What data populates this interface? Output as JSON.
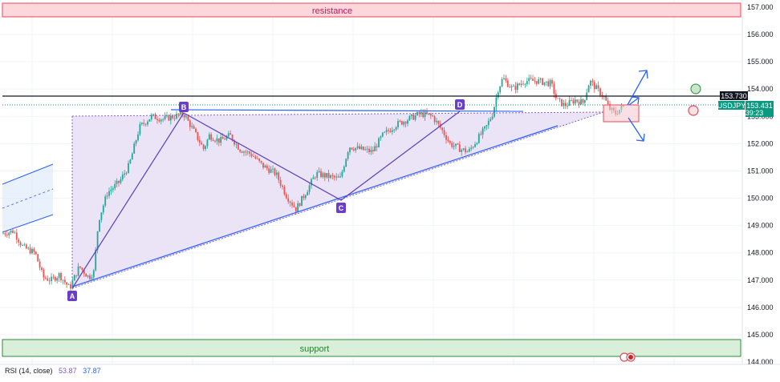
{
  "chart_data": {
    "type": "candlestick",
    "symbol": "USDJPY",
    "y_axis": {
      "min": 144.0,
      "max": 157.0,
      "ticks": [
        "157.000",
        "156.000",
        "155.000",
        "154.000",
        "153.000",
        "152.000",
        "151.000",
        "150.000",
        "149.000",
        "148.000",
        "147.000",
        "146.000",
        "145.000",
        "144.000"
      ]
    },
    "annotations": {
      "resistance_label": "resistance",
      "resistance_zone": [
        156.6,
        157.05
      ],
      "support_label": "support",
      "support_zone": [
        144.2,
        144.8
      ],
      "horizontal_level": 153.73,
      "pattern_points": [
        {
          "label": "A",
          "price": 146.6
        },
        {
          "label": "B",
          "price": 153.0
        },
        {
          "label": "C",
          "price": 149.9
        },
        {
          "label": "D",
          "price": 153.1
        }
      ]
    },
    "price_tags": {
      "level": "153.730",
      "symbol": "USDJPY",
      "last_price": "153.431",
      "countdown": "39:23"
    },
    "indicator": {
      "name": "RSI (14, close)",
      "value1": "53.87",
      "value2": "37.87"
    },
    "colors": {
      "up": "#26a69a",
      "down": "#ef5350",
      "pattern_line": "#5b3ebf",
      "trendline": "#2962ff",
      "resistance_fill": "#fdd7dc",
      "resistance_border": "#e8475a",
      "resistance_text": "#c2185b",
      "support_fill": "#d9efd9",
      "support_border": "#2e8b3a",
      "support_text": "#2e7d32",
      "triangle_fill": "#e6dff5",
      "label_bg": "#6a3fc8",
      "tag_green": "#089981",
      "tag_black": "#131722"
    },
    "grid": true
  }
}
